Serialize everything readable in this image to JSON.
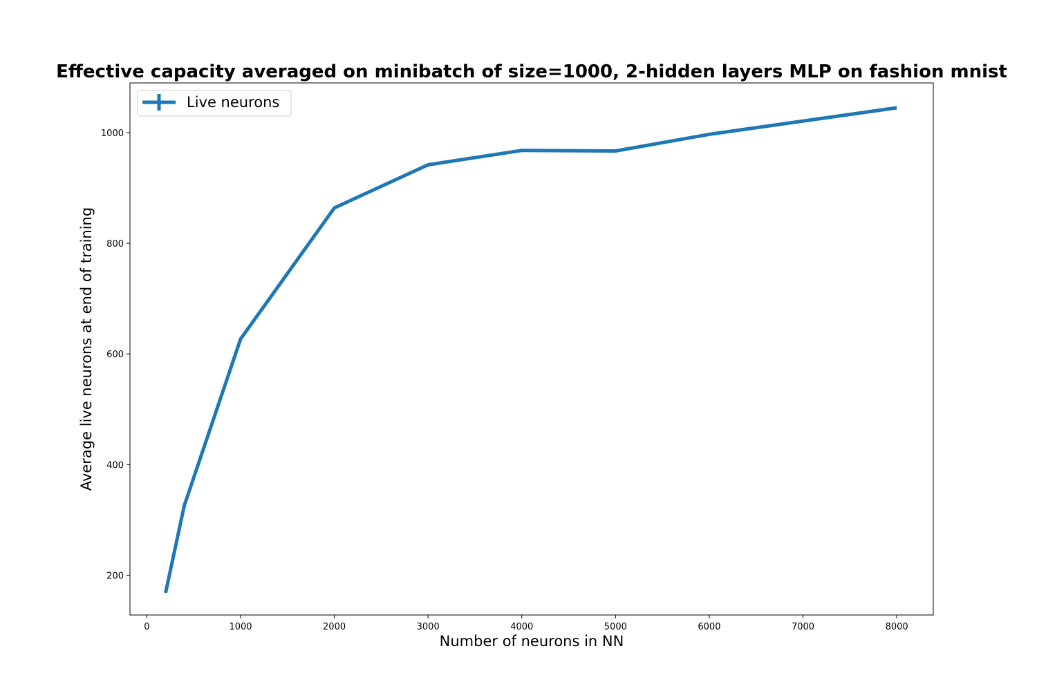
{
  "chart_data": {
    "type": "line",
    "title": "Effective capacity averaged on minibatch of size=1000, 2-hidden layers MLP on fashion mnist",
    "xlabel": "Number of neurons in NN",
    "ylabel": "Average live neurons at end of training",
    "xlim": [
      -180,
      8390
    ],
    "ylim": [
      128,
      1090
    ],
    "xticks": [
      0,
      1000,
      2000,
      3000,
      4000,
      5000,
      6000,
      7000,
      8000
    ],
    "yticks": [
      200,
      400,
      600,
      800,
      1000
    ],
    "grid": false,
    "legend_position": "top-left",
    "series": [
      {
        "name": "Live neurons",
        "color": "#1f77b4",
        "x": [
          200,
          400,
          1000,
          2000,
          3000,
          4000,
          5000,
          6000,
          8000
        ],
        "y": [
          168,
          326,
          627,
          864,
          942,
          968,
          967,
          997,
          1045
        ]
      }
    ]
  }
}
